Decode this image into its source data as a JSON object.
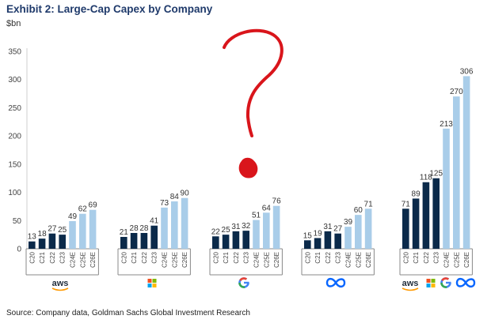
{
  "title": "Exhibit 2: Large-Cap Capex by Company",
  "unit": "$bn",
  "source": "Source: Company data, Goldman Sachs Global Investment Research",
  "annotation_mark": "?",
  "colors": {
    "actual": "#0b2a4a",
    "estimate": "#a9cde9",
    "question_mark": "#d9151b",
    "axis": "#888888",
    "grid": "#e6e6e6"
  },
  "chart_data": {
    "type": "bar",
    "title": "Exhibit 2: Large-Cap Capex by Company",
    "ylabel": "$bn",
    "ylim": [
      0,
      350
    ],
    "yticks": [
      0,
      50,
      100,
      150,
      200,
      250,
      300,
      350
    ],
    "categories": [
      "C20",
      "C21",
      "C22",
      "C23",
      "C24E",
      "C25E",
      "C26E"
    ],
    "estimate_from_index": 4,
    "legend": "none",
    "grid": false,
    "groups": [
      {
        "company_logo": "aws-logo",
        "values": [
          13,
          18,
          27,
          25,
          49,
          62,
          69
        ]
      },
      {
        "company_logo": "microsoft-logo",
        "values": [
          21,
          28,
          28,
          41,
          73,
          84,
          90
        ]
      },
      {
        "company_logo": "google-logo",
        "values": [
          22,
          25,
          31,
          32,
          51,
          64,
          76
        ]
      },
      {
        "company_logo": "meta-logo",
        "values": [
          15,
          19,
          31,
          27,
          39,
          60,
          71
        ]
      },
      {
        "company_logo": "aws-microsoft-google-meta-logos",
        "values": [
          71,
          89,
          118,
          125,
          213,
          270,
          306
        ]
      }
    ]
  }
}
